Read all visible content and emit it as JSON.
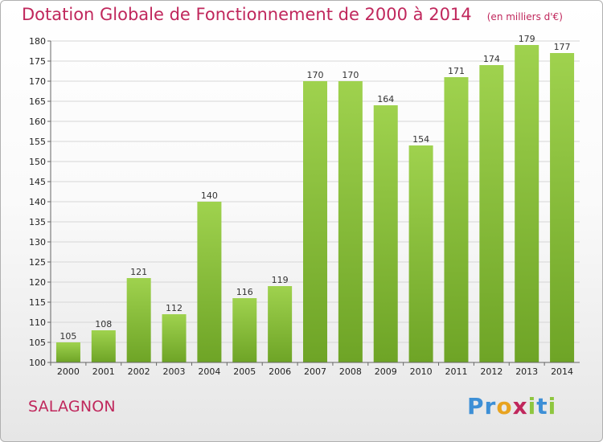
{
  "header": {
    "title": "Dotation Globale de Fonctionnement de 2000 à 2014",
    "unit": "(en milliers d'€)"
  },
  "footer": {
    "commune": "SALAGNON",
    "logo": {
      "letters": [
        "P",
        "r",
        "o",
        "x",
        "i",
        "t",
        "i"
      ],
      "colors": [
        "#3d8fd6",
        "#3d8fd6",
        "#e8a320",
        "#c0275c",
        "#8ec63f",
        "#3d8fd6",
        "#8ec63f"
      ]
    }
  },
  "colors": {
    "bar_light": "#9fd24e",
    "bar_dark": "#6ea426",
    "grid": "#d6d6d6",
    "title": "#c0275c"
  },
  "chart_data": {
    "type": "bar",
    "title": "Dotation Globale de Fonctionnement de 2000 à 2014",
    "xlabel": "",
    "ylabel": "",
    "categories": [
      "2000",
      "2001",
      "2002",
      "2003",
      "2004",
      "2005",
      "2006",
      "2007",
      "2008",
      "2009",
      "2010",
      "2011",
      "2012",
      "2013",
      "2014"
    ],
    "values": [
      105,
      108,
      121,
      112,
      140,
      116,
      119,
      170,
      170,
      164,
      154,
      171,
      174,
      179,
      177
    ],
    "ylim": [
      100,
      180
    ],
    "yticks": [
      100,
      105,
      110,
      115,
      120,
      125,
      130,
      135,
      140,
      145,
      150,
      155,
      160,
      165,
      170,
      175,
      180
    ],
    "data_labels": true,
    "grid": true
  }
}
